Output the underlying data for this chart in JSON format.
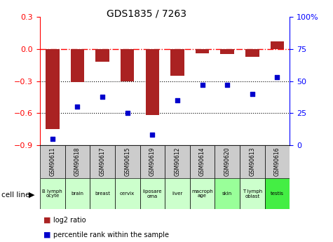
{
  "title": "GDS1835 / 7263",
  "samples": [
    "GSM90611",
    "GSM90618",
    "GSM90617",
    "GSM90615",
    "GSM90619",
    "GSM90612",
    "GSM90614",
    "GSM90620",
    "GSM90613",
    "GSM90616"
  ],
  "cell_lines": [
    "B lymph\nocyte",
    "brain",
    "breast",
    "cervix",
    "liposare\noma",
    "liver",
    "macroph\nage",
    "skin",
    "T lymph\noblast",
    "testis"
  ],
  "cell_line_colors": [
    "#ccffcc",
    "#ccffcc",
    "#ccffcc",
    "#ccffcc",
    "#ccffcc",
    "#ccffcc",
    "#ccffcc",
    "#99ff99",
    "#ccffcc",
    "#44ee44"
  ],
  "log2_ratio": [
    -0.75,
    -0.31,
    -0.12,
    -0.3,
    -0.62,
    -0.25,
    -0.04,
    -0.05,
    -0.07,
    0.07
  ],
  "percentile_rank": [
    5,
    30,
    38,
    25,
    8,
    35,
    47,
    47,
    40,
    53
  ],
  "bar_color": "#aa2222",
  "dot_color": "#0000cc",
  "ylim_left": [
    -0.9,
    0.3
  ],
  "ylim_right": [
    0,
    100
  ],
  "yticks_left": [
    -0.9,
    -0.6,
    -0.3,
    0,
    0.3
  ],
  "yticks_right": [
    0,
    25,
    50,
    75,
    100
  ],
  "hline_y": 0,
  "dotted_lines": [
    -0.3,
    -0.6
  ],
  "background_color": "#ffffff",
  "legend_items": [
    "log2 ratio",
    "percentile rank within the sample"
  ]
}
